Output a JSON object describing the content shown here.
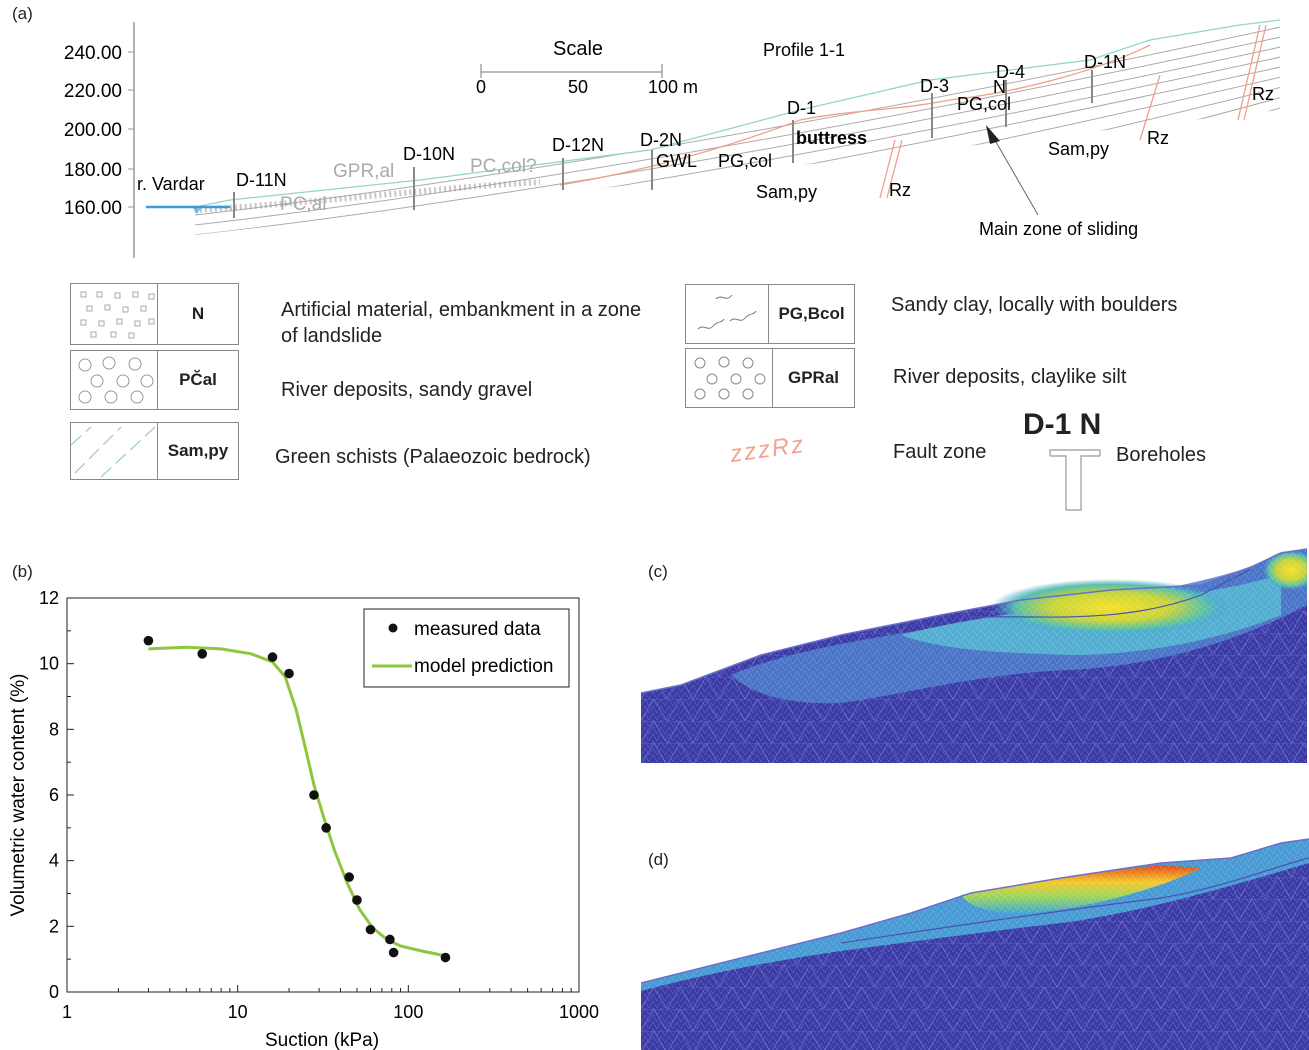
{
  "panel_a": {
    "label": "(a)",
    "elevation_ticks": [
      "240.00",
      "220.00",
      "200.00",
      "180.00",
      "160.00"
    ],
    "scale": {
      "title": "Scale",
      "ticks": [
        "0",
        "50",
        "100 m"
      ]
    },
    "profile_title": "Profile 1-1",
    "river_label": "r. Vardar",
    "boreholes": [
      "D-11N",
      "D-10N",
      "D-12N",
      "D-2N",
      "D-1",
      "D-3",
      "D-4",
      "D-1N"
    ],
    "unit_labels": {
      "gpr_al": "GPR,al",
      "pc_al": "PC,al",
      "pc_col": "PC,col?",
      "gwl": "GWL",
      "pg_col_left": "PG,col",
      "buttress": "buttress",
      "sam_py_left": "Sam,py",
      "rz_left": "Rz",
      "n": "N",
      "pg_col_right": "PG,col",
      "sam_py_right": "Sam,py",
      "rz_mid": "Rz",
      "rz_right": "Rz"
    },
    "sliding_annotation": "Main zone of sliding",
    "legend": [
      {
        "code": "N",
        "description": "Artificial material, embankment in a zone of landslide"
      },
      {
        "code": "PC̆al",
        "description": "River deposits, sandy gravel"
      },
      {
        "code": "Sam,py",
        "description": "Green schists (Palaeozoic bedrock)"
      },
      {
        "code": "PG,Bcol",
        "description": "Sandy clay, locally with boulders"
      },
      {
        "code": "GPRal",
        "description": "River deposits, claylike silt"
      },
      {
        "code": "zzzRz",
        "description": "Fault zone"
      }
    ],
    "borehole_legend": {
      "label": "D-1 N",
      "description": "Boreholes"
    }
  },
  "panel_b": {
    "label": "(b)",
    "chart_data": {
      "type": "scatter",
      "xscale": "log",
      "xlabel": "Suction (kPa)",
      "ylabel": "Volumetric water content (%)",
      "xlim": [
        1,
        1000
      ],
      "ylim": [
        0,
        12
      ],
      "x_ticks": [
        "1",
        "10",
        "100",
        "1000"
      ],
      "y_ticks": [
        "0",
        "2",
        "4",
        "6",
        "8",
        "10",
        "12"
      ],
      "legend_position": "top-right",
      "series": [
        {
          "name": "measured data",
          "points": [
            [
              3,
              10.7
            ],
            [
              6.2,
              10.3
            ],
            [
              16,
              10.2
            ],
            [
              20,
              9.7
            ],
            [
              28,
              6.0
            ],
            [
              33,
              5.0
            ],
            [
              45,
              3.5
            ],
            [
              50,
              2.8
            ],
            [
              60,
              1.9
            ],
            [
              78,
              1.6
            ],
            [
              82,
              1.2
            ],
            [
              165,
              1.05
            ]
          ]
        },
        {
          "name": "model prediction",
          "points": [
            [
              3,
              10.45
            ],
            [
              5,
              10.5
            ],
            [
              8,
              10.45
            ],
            [
              12,
              10.3
            ],
            [
              16,
              10.05
            ],
            [
              19,
              9.6
            ],
            [
              22,
              8.6
            ],
            [
              25,
              7.4
            ],
            [
              28,
              6.3
            ],
            [
              32,
              5.3
            ],
            [
              37,
              4.3
            ],
            [
              44,
              3.3
            ],
            [
              52,
              2.5
            ],
            [
              62,
              1.95
            ],
            [
              75,
              1.6
            ],
            [
              90,
              1.4
            ],
            [
              120,
              1.25
            ],
            [
              165,
              1.1
            ]
          ]
        }
      ],
      "colors": {
        "points": "#111111",
        "line": "#8dc63f"
      }
    }
  },
  "panel_c": {
    "label": "(c)"
  },
  "panel_d": {
    "label": "(d)"
  }
}
